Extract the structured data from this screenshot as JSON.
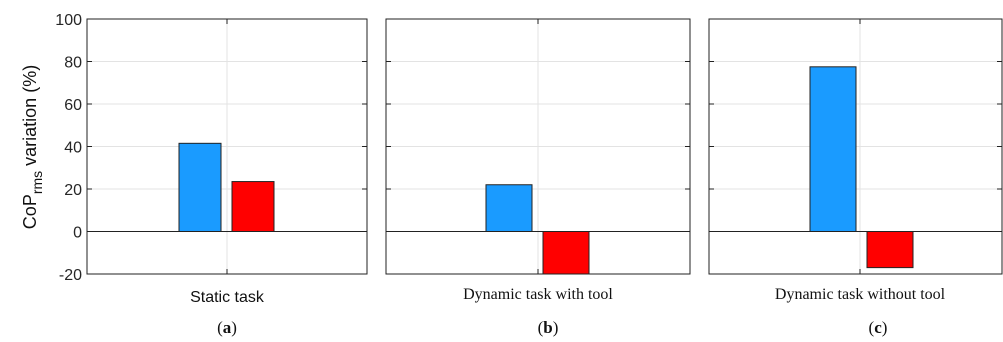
{
  "chart_data": {
    "type": "bar",
    "ylabel_main": "CoP",
    "ylabel_sub": "rms",
    "ylabel_rest": " variation (%)",
    "ylim": [
      -20,
      100
    ],
    "yticks": [
      "-20",
      "0",
      "20",
      "40",
      "60",
      "80",
      "100"
    ],
    "grid": true,
    "colors": [
      "#1a9bff",
      "#ff0000"
    ],
    "panels": [
      {
        "xlabel": "Static task",
        "tag_open": "(",
        "tag": "a",
        "tag_close": ")",
        "values": [
          41.5,
          23.5
        ]
      },
      {
        "xlabel": "Dynamic task with tool",
        "tag_open": "(",
        "tag": "b",
        "tag_close": ")",
        "values": [
          22,
          -20
        ]
      },
      {
        "xlabel": "Dynamic task without tool",
        "tag_open": "(",
        "tag": "c",
        "tag_close": ")",
        "values": [
          77.5,
          -17
        ]
      }
    ]
  }
}
